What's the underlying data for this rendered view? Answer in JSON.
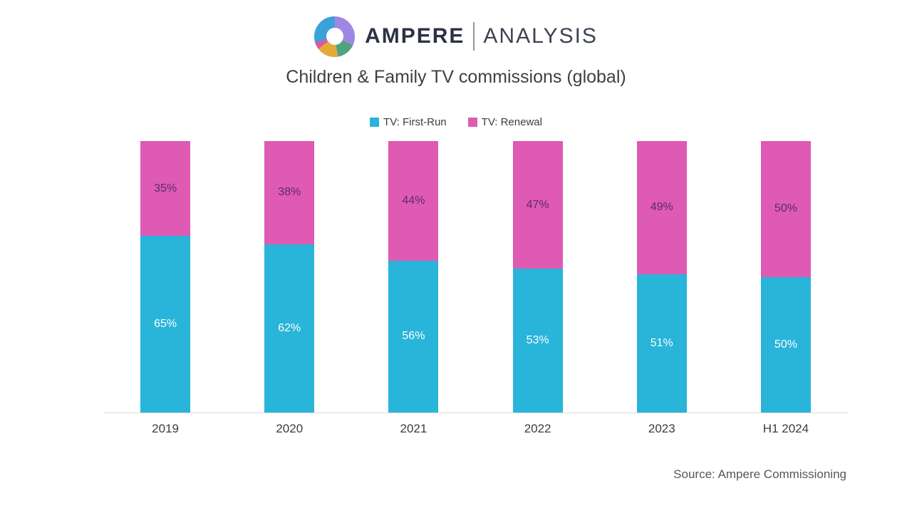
{
  "logo": {
    "brand": "AMPERE",
    "suffix": "ANALYSIS",
    "icon": "donut-chart-icon",
    "icon_colors": {
      "purple": "#9d87e2",
      "green": "#4fa381",
      "yellow": "#e3a93a",
      "pink": "#e0579e",
      "blue": "#3aa2d8"
    }
  },
  "title": "Children & Family TV commissions (global)",
  "source": "Source: Ampere Commissioning",
  "colors": {
    "first_run": "#29b4d9",
    "renewal": "#de5ab3",
    "first_run_label": "#ffffff",
    "renewal_label": "#5b2a6e",
    "axis_line": "#d9d9d9",
    "text": "#3d3d3d"
  },
  "chart_data": {
    "type": "bar",
    "stacked": true,
    "categories": [
      "2019",
      "2020",
      "2021",
      "2022",
      "2023",
      "H1 2024"
    ],
    "series": [
      {
        "name": "TV: First-Run",
        "color": "#29b4d9",
        "label_color": "#ffffff",
        "values": [
          65,
          62,
          56,
          53,
          51,
          50
        ]
      },
      {
        "name": "TV: Renewal",
        "color": "#de5ab3",
        "label_color": "#5b2a6e",
        "values": [
          35,
          38,
          44,
          47,
          49,
          50
        ]
      }
    ],
    "value_suffix": "%",
    "ylim": [
      0,
      100
    ],
    "grid": false,
    "y_axis_visible": false,
    "legend_position": "top",
    "data_labels": "inside-center"
  }
}
